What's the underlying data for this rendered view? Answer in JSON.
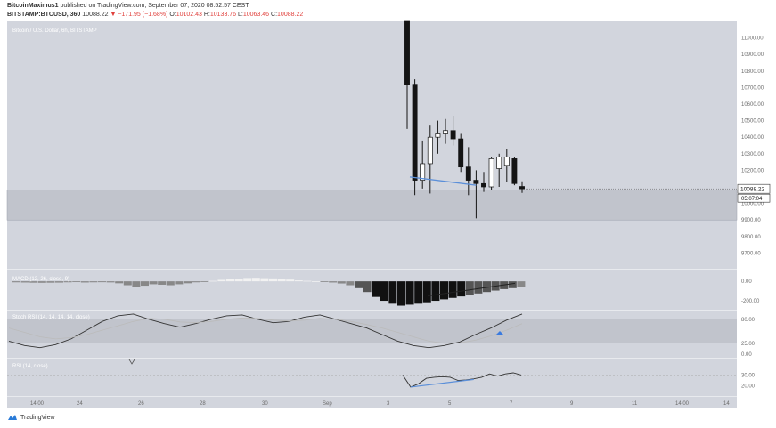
{
  "header": {
    "author": "BitcoinMaximus1",
    "published_text": "published on TradingView.com, September 07, 2020 08:52:57 CEST",
    "symbol": "BITSTAMP:BTCUSD, 360",
    "last_price": "10088.22",
    "change_arrow": "▼",
    "change": "−171.95 (−1.68%)",
    "o_label": "O:",
    "o_val": "10102.43",
    "h_label": "H:",
    "h_val": "10133.76",
    "l_label": "L:",
    "l_val": "10063.46",
    "c_label": "C:",
    "c_val": "10088.22"
  },
  "footer": {
    "brand": "TradingView"
  },
  "colors": {
    "pane_bg": "#d2d5dd",
    "zone": "#c1c4cc",
    "bull": "#ffffff",
    "bear": "#141414",
    "trendline": "#5b8fd9",
    "axis_text": "#6a6a6a",
    "price_tag": "#ffffff"
  },
  "chart_data": [
    {
      "type": "candlestick",
      "title": "Bitcoin / U.S. Dollar, 6h, BITSTAMP",
      "ylim": [
        9600,
        11100
      ],
      "yticks": [
        11000,
        10900,
        10800,
        10700,
        10600,
        10500,
        10400,
        10300,
        10200,
        10100,
        10000,
        9900,
        9800,
        9700
      ],
      "ytick_labels": [
        "11000.00",
        "10900.00",
        "10800.00",
        "10700.00",
        "10600.00",
        "10500.00",
        "10400.00",
        "10300.00",
        "10200.00",
        "10100.00",
        "10000.00",
        "9900.00",
        "9800.00",
        "9700.00"
      ],
      "last_price_label": "10088.22",
      "countdown_label": "05:07:04",
      "horizontal_zone": [
        9900,
        10080
      ],
      "candles": [
        {
          "x": 0,
          "o": 11100,
          "h": 11100,
          "l": 10450,
          "c": 10720
        },
        {
          "x": 1,
          "o": 10720,
          "h": 10750,
          "l": 10050,
          "c": 10140
        },
        {
          "x": 2,
          "o": 10140,
          "h": 10380,
          "l": 10090,
          "c": 10240
        },
        {
          "x": 3,
          "o": 10240,
          "h": 10470,
          "l": 10060,
          "c": 10400
        },
        {
          "x": 4,
          "o": 10400,
          "h": 10500,
          "l": 10300,
          "c": 10420
        },
        {
          "x": 5,
          "o": 10420,
          "h": 10510,
          "l": 10360,
          "c": 10440
        },
        {
          "x": 6,
          "o": 10440,
          "h": 10530,
          "l": 10350,
          "c": 10390
        },
        {
          "x": 7,
          "o": 10390,
          "h": 10420,
          "l": 10190,
          "c": 10220
        },
        {
          "x": 8,
          "o": 10220,
          "h": 10340,
          "l": 10050,
          "c": 10140
        },
        {
          "x": 9,
          "o": 10140,
          "h": 10200,
          "l": 9910,
          "c": 10120
        },
        {
          "x": 10,
          "o": 10120,
          "h": 10190,
          "l": 10070,
          "c": 10100
        },
        {
          "x": 11,
          "o": 10100,
          "h": 10280,
          "l": 10080,
          "c": 10270
        },
        {
          "x": 12,
          "o": 10210,
          "h": 10300,
          "l": 10100,
          "c": 10280
        },
        {
          "x": 13,
          "o": 10230,
          "h": 10330,
          "l": 10130,
          "c": 10280
        },
        {
          "x": 14,
          "o": 10270,
          "h": 10280,
          "l": 10110,
          "c": 10120
        },
        {
          "x": 15,
          "o": 10102.43,
          "h": 10133.76,
          "l": 10063.46,
          "c": 10088.22
        }
      ],
      "trendline": [
        [
          0,
          10160
        ],
        [
          9,
          10110
        ]
      ],
      "x_tick_labels": [
        "14:00",
        "24",
        "26",
        "28",
        "30",
        "Sep",
        "3",
        "5",
        "7",
        "9",
        "11",
        "14:00",
        "14"
      ]
    },
    {
      "type": "histogram",
      "title": "MACD (12, 26, close, 9)",
      "ylim": [
        -300,
        120
      ],
      "yticks": [
        0,
        -200
      ],
      "ytick_labels": [
        "0.00",
        "-200.00"
      ],
      "values": [
        -10,
        -12,
        -14,
        -15,
        -14,
        -13,
        -10,
        -8,
        -12,
        -10,
        -9,
        -11,
        -20,
        -40,
        -55,
        -45,
        -30,
        -35,
        -40,
        -30,
        -20,
        -10,
        -5,
        5,
        15,
        20,
        28,
        34,
        36,
        32,
        30,
        25,
        18,
        10,
        5,
        0,
        -5,
        -12,
        -22,
        -40,
        -70,
        -110,
        -160,
        -200,
        -230,
        -250,
        -240,
        -230,
        -215,
        -200,
        -185,
        -170,
        -155,
        -140,
        -125,
        -110,
        -95,
        -80,
        -70,
        -60
      ]
    },
    {
      "type": "line",
      "title": "Stoch RSI (14, 14, 14, 14, close)",
      "ylim": [
        -10,
        100
      ],
      "yticks": [
        80,
        25,
        0
      ],
      "ytick_labels": [
        "80.00",
        "25.00",
        "0.00"
      ],
      "band": [
        25,
        80
      ],
      "series": [
        {
          "values": [
            30,
            20,
            15,
            22,
            35,
            55,
            75,
            88,
            92,
            80,
            70,
            62,
            70,
            80,
            88,
            90,
            80,
            72,
            75,
            85,
            90,
            80,
            70,
            60,
            45,
            30,
            20,
            15,
            20,
            28,
            45,
            60,
            78,
            92
          ]
        },
        {
          "values": [
            60,
            50,
            40,
            35,
            38,
            45,
            55,
            65,
            75,
            82,
            80,
            74,
            72,
            75,
            80,
            83,
            82,
            78,
            76,
            78,
            82,
            80,
            75,
            68,
            60,
            50,
            40,
            30,
            25,
            26,
            32,
            42,
            55,
            70
          ]
        }
      ]
    },
    {
      "type": "line",
      "title": "RSI (14, close)",
      "ylim": [
        10,
        45
      ],
      "yticks": [
        30,
        20
      ],
      "ytick_labels": [
        "30.00",
        "20.00"
      ],
      "series": [
        {
          "values": [
            30,
            19,
            22,
            27,
            28,
            28.5,
            28,
            25,
            25.5,
            26.5,
            28,
            31,
            29,
            31,
            32,
            30
          ]
        }
      ],
      "trendline": [
        [
          1,
          19
        ],
        [
          9,
          26
        ]
      ]
    }
  ]
}
